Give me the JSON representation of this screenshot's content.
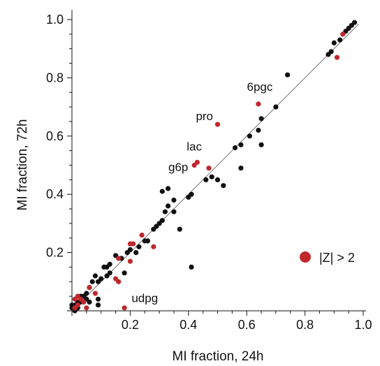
{
  "chart_data": {
    "type": "scatter",
    "title": "",
    "xlabel": "MI fraction, 24h",
    "ylabel": "MI fraction, 72h",
    "xlim": [
      0,
      1.0
    ],
    "ylim": [
      0,
      1.0
    ],
    "xticks": [
      "0.2",
      "0.4",
      "0.6",
      "0.8",
      "1.0"
    ],
    "yticks": [
      "0.2",
      "0.4",
      "0.6",
      "0.8",
      "1.0"
    ],
    "xtick_values": [
      0.2,
      0.4,
      0.6,
      0.8,
      1.0
    ],
    "ytick_values": [
      0.2,
      0.4,
      0.6,
      0.8,
      1.0
    ],
    "grid": false,
    "reference_line": "y = x",
    "legend": {
      "label": "|Z| > 2",
      "position": "bottom-right"
    },
    "colors": {
      "normal": "#111111",
      "significant": "#c0272d",
      "reference_line": "#8a8a8a"
    },
    "series": [
      {
        "name": "|Z| > 2",
        "points": [
          [
            0.93,
            0.95
          ],
          [
            0.91,
            0.87
          ],
          [
            0.64,
            0.71
          ],
          [
            0.5,
            0.64
          ],
          [
            0.43,
            0.51
          ],
          [
            0.42,
            0.5
          ],
          [
            0.47,
            0.49
          ],
          [
            0.24,
            0.26
          ],
          [
            0.2,
            0.23
          ],
          [
            0.21,
            0.23
          ],
          [
            0.28,
            0.22
          ],
          [
            0.16,
            0.18
          ],
          [
            0.2,
            0.17
          ],
          [
            0.15,
            0.11
          ],
          [
            0.16,
            0.1
          ],
          [
            0.06,
            0.08
          ],
          [
            0.08,
            0.06
          ],
          [
            0.03,
            0.04
          ],
          [
            0.04,
            0.03
          ],
          [
            0.02,
            0.05
          ],
          [
            0.01,
            0.04
          ],
          [
            0.02,
            0.02
          ],
          [
            0.05,
            0.01
          ],
          [
            0.01,
            0.01
          ],
          [
            0.18,
            0.01
          ]
        ]
      },
      {
        "points": [
          [
            0.94,
            0.96
          ],
          [
            0.95,
            0.97
          ],
          [
            0.96,
            0.98
          ],
          [
            0.97,
            0.99
          ],
          [
            0.92,
            0.93
          ],
          [
            0.9,
            0.92
          ],
          [
            0.89,
            0.89
          ],
          [
            0.88,
            0.88
          ],
          [
            0.74,
            0.81
          ],
          [
            0.7,
            0.7
          ],
          [
            0.65,
            0.66
          ],
          [
            0.64,
            0.62
          ],
          [
            0.61,
            0.6
          ],
          [
            0.65,
            0.57
          ],
          [
            0.58,
            0.57
          ],
          [
            0.56,
            0.56
          ],
          [
            0.58,
            0.49
          ],
          [
            0.48,
            0.46
          ],
          [
            0.5,
            0.45
          ],
          [
            0.52,
            0.43
          ],
          [
            0.46,
            0.45
          ],
          [
            0.41,
            0.4
          ],
          [
            0.4,
            0.39
          ],
          [
            0.31,
            0.41
          ],
          [
            0.33,
            0.42
          ],
          [
            0.35,
            0.38
          ],
          [
            0.33,
            0.36
          ],
          [
            0.35,
            0.34
          ],
          [
            0.32,
            0.34
          ],
          [
            0.31,
            0.31
          ],
          [
            0.3,
            0.3
          ],
          [
            0.29,
            0.29
          ],
          [
            0.28,
            0.28
          ],
          [
            0.26,
            0.24
          ],
          [
            0.25,
            0.24
          ],
          [
            0.23,
            0.22
          ],
          [
            0.2,
            0.21
          ],
          [
            0.17,
            0.18
          ],
          [
            0.13,
            0.16
          ],
          [
            0.12,
            0.15
          ],
          [
            0.15,
            0.19
          ],
          [
            0.13,
            0.13
          ],
          [
            0.12,
            0.12
          ],
          [
            0.11,
            0.15
          ],
          [
            0.1,
            0.11
          ],
          [
            0.09,
            0.1
          ],
          [
            0.08,
            0.12
          ],
          [
            0.07,
            0.1
          ],
          [
            0.06,
            0.08
          ],
          [
            0.05,
            0.06
          ],
          [
            0.05,
            0.04
          ],
          [
            0.04,
            0.05
          ],
          [
            0.03,
            0.03
          ],
          [
            0.03,
            0.05
          ],
          [
            0.02,
            0.03
          ],
          [
            0.02,
            0.01
          ],
          [
            0.01,
            0.02
          ],
          [
            0.01,
            0.0
          ],
          [
            0.0,
            0.01
          ],
          [
            0.0,
            0.02
          ],
          [
            0.41,
            0.15
          ],
          [
            0.37,
            0.28
          ],
          [
            0.09,
            0.04
          ],
          [
            0.09,
            0.02
          ],
          [
            0.18,
            0.13
          ],
          [
            0.19,
            0.2
          ],
          [
            0.22,
            0.2
          ],
          [
            0.06,
            0.03
          ]
        ]
      }
    ],
    "annotations": [
      {
        "text": "6pgc",
        "x": 0.645,
        "y": 0.755
      },
      {
        "text": "pro",
        "x": 0.455,
        "y": 0.655
      },
      {
        "text": "lac",
        "x": 0.42,
        "y": 0.55
      },
      {
        "text": "g6p",
        "x": 0.365,
        "y": 0.48
      },
      {
        "text": "udpg",
        "x": 0.25,
        "y": 0.03
      }
    ]
  }
}
